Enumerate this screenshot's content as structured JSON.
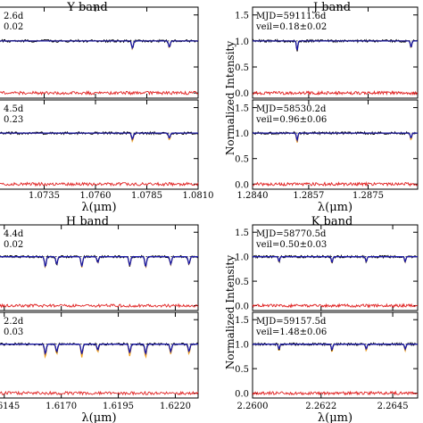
{
  "figure": {
    "ylabel": "Normalized Intensity",
    "colors": {
      "observed": "#000000",
      "model": "#1a1aa8",
      "veiled_model": "#f0a020",
      "residual": "#e02020"
    }
  },
  "chart_data": [
    {
      "type": "line",
      "band": "Y band",
      "xlabel": "λ(μm)",
      "xticks": [
        "1.0735",
        "1.0760",
        "1.0785",
        "1.0810"
      ],
      "xlim": [
        1.071,
        1.081
      ],
      "ylim": [
        -0.1,
        1.65
      ],
      "yticks": [],
      "panels": [
        {
          "label_lines": [
            "2.6d",
            "0.02"
          ],
          "lines": [
            {
              "x": 1.0778,
              "d": 0.14
            },
            {
              "x": 1.0796,
              "d": 0.12
            },
            {
              "x": 1.0712,
              "d": 0.2
            }
          ]
        },
        {
          "label_lines": [
            "4.5d",
            "0.23"
          ],
          "lines": [
            {
              "x": 1.0778,
              "d": 0.12
            },
            {
              "x": 1.0796,
              "d": 0.1
            },
            {
              "x": 1.0712,
              "d": 0.16
            }
          ]
        }
      ]
    },
    {
      "type": "line",
      "band": "J band",
      "xlabel": "λ(μm)",
      "xticks": [
        "1.2840",
        "1.2857",
        "1.2875"
      ],
      "xlim": [
        1.284,
        1.289
      ],
      "ylim": [
        -0.1,
        1.65
      ],
      "yticks": [
        "0.0",
        "0.5",
        "1.0",
        "1.5"
      ],
      "panels": [
        {
          "label_lines": [
            "MJD=59111.6d",
            "veil=0.18±0.02"
          ],
          "lines": [
            {
              "x": 1.28535,
              "d": 0.18
            },
            {
              "x": 1.2888,
              "d": 0.12
            }
          ]
        },
        {
          "label_lines": [
            "MJD=58530.2d",
            "veil=0.96±0.06"
          ],
          "lines": [
            {
              "x": 1.28535,
              "d": 0.14
            },
            {
              "x": 1.2888,
              "d": 0.1
            }
          ]
        }
      ]
    },
    {
      "type": "line",
      "band": "H band",
      "xlabel": "λ(μm)",
      "xticks": [
        "1.6145",
        "1.6170",
        "1.6195",
        "1.6220"
      ],
      "xlim": [
        1.614,
        1.623
      ],
      "ylim": [
        -0.1,
        1.65
      ],
      "yticks": [],
      "panels": [
        {
          "label_lines": [
            "4.4d",
            "0.02"
          ],
          "lines": [
            {
              "x": 1.6163,
              "d": 0.2
            },
            {
              "x": 1.6168,
              "d": 0.15
            },
            {
              "x": 1.6179,
              "d": 0.2
            },
            {
              "x": 1.6186,
              "d": 0.12
            },
            {
              "x": 1.62,
              "d": 0.18
            },
            {
              "x": 1.6207,
              "d": 0.2
            },
            {
              "x": 1.6218,
              "d": 0.15
            },
            {
              "x": 1.6226,
              "d": 0.15
            }
          ]
        },
        {
          "label_lines": [
            "2.2d",
            "0.03"
          ],
          "lines": [
            {
              "x": 1.6163,
              "d": 0.2
            },
            {
              "x": 1.6168,
              "d": 0.15
            },
            {
              "x": 1.6179,
              "d": 0.2
            },
            {
              "x": 1.6186,
              "d": 0.12
            },
            {
              "x": 1.62,
              "d": 0.18
            },
            {
              "x": 1.6207,
              "d": 0.2
            },
            {
              "x": 1.6218,
              "d": 0.15
            },
            {
              "x": 1.6226,
              "d": 0.15
            }
          ]
        }
      ]
    },
    {
      "type": "line",
      "band": "K band",
      "xlabel": "λ(μm)",
      "xticks": [
        "2.2600",
        "2.2622",
        "2.2645"
      ],
      "xlim": [
        2.26,
        2.2653
      ],
      "ylim": [
        -0.1,
        1.65
      ],
      "yticks": [
        "0.0",
        "0.5",
        "1.0",
        "1.5"
      ],
      "panels": [
        {
          "label_lines": [
            "MJD=58770.5d",
            "veil=0.50±0.03"
          ],
          "lines": [
            {
              "x": 2.26085,
              "d": 0.1
            },
            {
              "x": 2.26255,
              "d": 0.12
            },
            {
              "x": 2.26365,
              "d": 0.1
            },
            {
              "x": 2.2649,
              "d": 0.1
            }
          ]
        },
        {
          "label_lines": [
            "MJD=59157.5d",
            "veil=1.48±0.06"
          ],
          "lines": [
            {
              "x": 2.26085,
              "d": 0.1
            },
            {
              "x": 2.26255,
              "d": 0.12
            },
            {
              "x": 2.26365,
              "d": 0.1
            },
            {
              "x": 2.2649,
              "d": 0.1
            }
          ]
        }
      ]
    }
  ]
}
